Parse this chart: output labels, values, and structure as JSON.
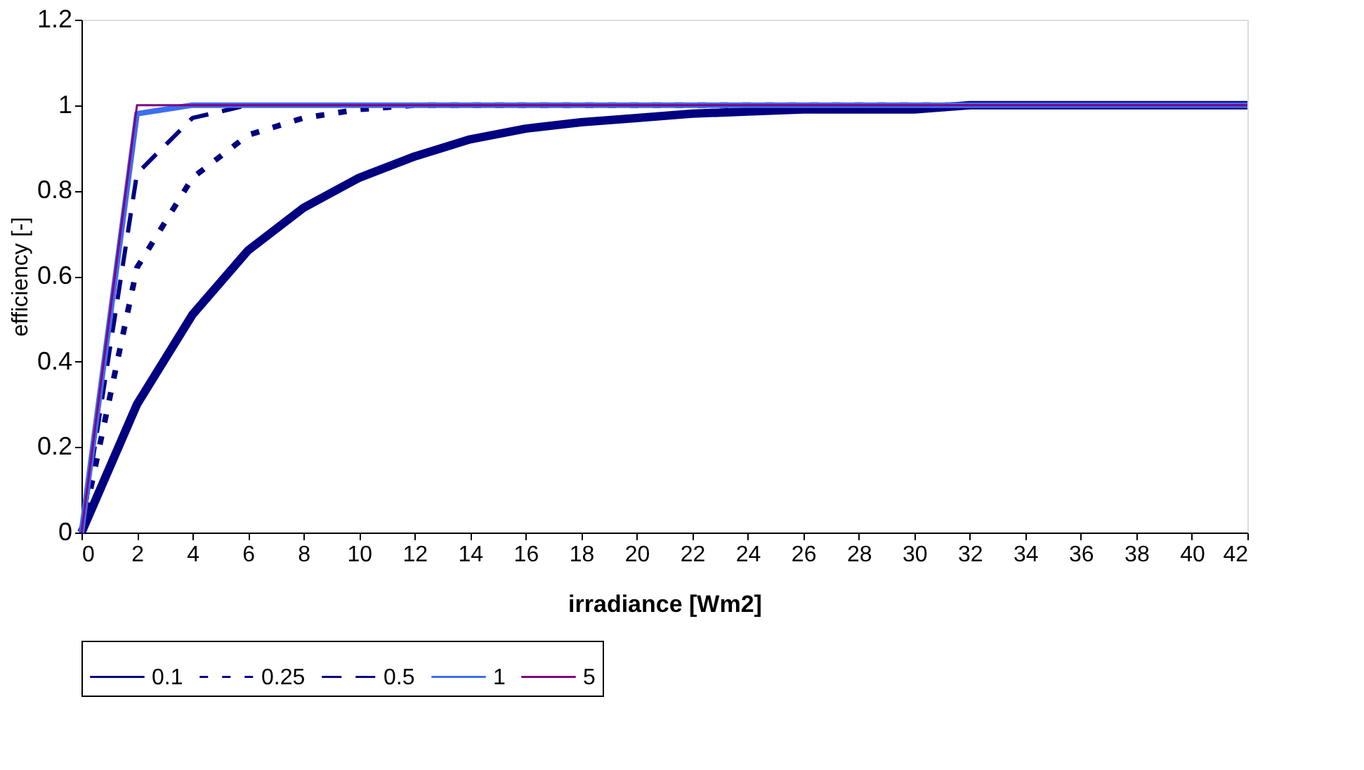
{
  "chart_data": {
    "type": "line",
    "xlabel": "irradiance [Wm2]",
    "ylabel": "efficiency [-]",
    "x": [
      0,
      2,
      4,
      6,
      8,
      10,
      12,
      14,
      16,
      18,
      20,
      22,
      24,
      26,
      28,
      30,
      32,
      34,
      36,
      38,
      40,
      42
    ],
    "xlim": [
      0,
      42
    ],
    "xticks": [
      0,
      2,
      4,
      6,
      8,
      10,
      12,
      14,
      16,
      18,
      20,
      22,
      24,
      26,
      28,
      30,
      32,
      34,
      36,
      38,
      40,
      42
    ],
    "ylim": [
      0,
      1.2
    ],
    "yticks": [
      0,
      0.2,
      0.4,
      0.6,
      0.8,
      1,
      1.2
    ],
    "grid": false,
    "legend": "bottom",
    "marker": "none",
    "series": [
      {
        "name": "0.1",
        "color": "#000080",
        "line_style": "solid",
        "values": [
          0,
          0.3,
          0.51,
          0.66,
          0.76,
          0.83,
          0.88,
          0.92,
          0.945,
          0.96,
          0.97,
          0.98,
          0.985,
          0.99,
          0.99,
          0.99,
          1,
          1,
          1,
          1,
          1,
          1
        ]
      },
      {
        "name": "0.25",
        "color": "#000080",
        "line_style": "dotted",
        "values": [
          0,
          0.62,
          0.83,
          0.93,
          0.97,
          0.99,
          1,
          1,
          1,
          1,
          1,
          1,
          1,
          1,
          1,
          1,
          1,
          1,
          1,
          1,
          1,
          1
        ]
      },
      {
        "name": "0.5",
        "color": "#000080",
        "line_style": "dashed",
        "values": [
          0,
          0.84,
          0.97,
          1,
          1,
          1,
          1,
          1,
          1,
          1,
          1,
          1,
          1,
          1,
          1,
          1,
          1,
          1,
          1,
          1,
          1,
          1
        ]
      },
      {
        "name": "1",
        "color": "#3c6ef0",
        "line_style": "solid",
        "values": [
          0,
          0.98,
          1,
          1,
          1,
          1,
          1,
          1,
          1,
          1,
          1,
          1,
          1,
          1,
          1,
          1,
          1,
          1,
          1,
          1,
          1,
          1
        ]
      },
      {
        "name": "5",
        "color": "#800080",
        "line_style": "solid",
        "values": [
          0,
          1,
          1,
          1,
          1,
          1,
          1,
          1,
          1,
          1,
          1,
          1,
          1,
          1,
          1,
          1,
          1,
          1,
          1,
          1,
          1,
          1
        ]
      }
    ]
  }
}
